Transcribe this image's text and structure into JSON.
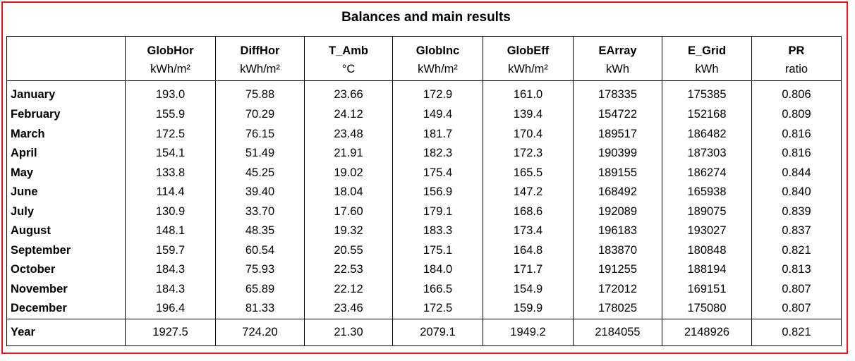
{
  "title": "Balances and main results",
  "columns": [
    {
      "name": "GlobHor",
      "unit": "kWh/m²"
    },
    {
      "name": "DiffHor",
      "unit": "kWh/m²"
    },
    {
      "name": "T_Amb",
      "unit": "°C"
    },
    {
      "name": "GlobInc",
      "unit": "kWh/m²"
    },
    {
      "name": "GlobEff",
      "unit": "kWh/m²"
    },
    {
      "name": "EArray",
      "unit": "kWh"
    },
    {
      "name": "E_Grid",
      "unit": "kWh"
    },
    {
      "name": "PR",
      "unit": "ratio"
    }
  ],
  "rows": [
    {
      "label": "January",
      "values": [
        "193.0",
        "75.88",
        "23.66",
        "172.9",
        "161.0",
        "178335",
        "175385",
        "0.806"
      ]
    },
    {
      "label": "February",
      "values": [
        "155.9",
        "70.29",
        "24.12",
        "149.4",
        "139.4",
        "154722",
        "152168",
        "0.809"
      ]
    },
    {
      "label": "March",
      "values": [
        "172.5",
        "76.15",
        "23.48",
        "181.7",
        "170.4",
        "189517",
        "186482",
        "0.816"
      ]
    },
    {
      "label": "April",
      "values": [
        "154.1",
        "51.49",
        "21.91",
        "182.3",
        "172.3",
        "190399",
        "187303",
        "0.816"
      ]
    },
    {
      "label": "May",
      "values": [
        "133.8",
        "45.25",
        "19.02",
        "175.4",
        "165.5",
        "189155",
        "186274",
        "0.844"
      ]
    },
    {
      "label": "June",
      "values": [
        "114.4",
        "39.40",
        "18.04",
        "156.9",
        "147.2",
        "168492",
        "165938",
        "0.840"
      ]
    },
    {
      "label": "July",
      "values": [
        "130.9",
        "33.70",
        "17.60",
        "179.1",
        "168.6",
        "192089",
        "189075",
        "0.839"
      ]
    },
    {
      "label": "August",
      "values": [
        "148.1",
        "48.35",
        "19.32",
        "183.3",
        "173.4",
        "196183",
        "193027",
        "0.837"
      ]
    },
    {
      "label": "September",
      "values": [
        "159.7",
        "60.54",
        "20.55",
        "175.1",
        "164.8",
        "183870",
        "180848",
        "0.821"
      ]
    },
    {
      "label": "October",
      "values": [
        "184.3",
        "75.93",
        "22.53",
        "184.0",
        "171.7",
        "191255",
        "188194",
        "0.813"
      ]
    },
    {
      "label": "November",
      "values": [
        "184.3",
        "65.89",
        "22.12",
        "166.5",
        "154.9",
        "172012",
        "169151",
        "0.807"
      ]
    },
    {
      "label": "December",
      "values": [
        "196.4",
        "81.33",
        "23.46",
        "172.5",
        "159.9",
        "178025",
        "175080",
        "0.807"
      ]
    }
  ],
  "total": {
    "label": "Year",
    "values": [
      "1927.5",
      "724.20",
      "21.30",
      "2079.1",
      "1949.2",
      "2184055",
      "2148926",
      "0.821"
    ]
  },
  "colors": {
    "frame": "#e3171c"
  }
}
